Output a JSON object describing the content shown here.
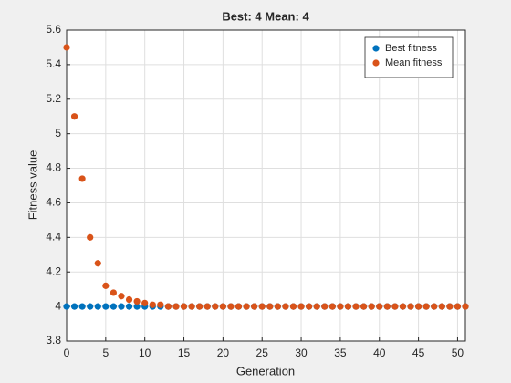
{
  "chart_data": {
    "type": "scatter",
    "title": "Best: 4 Mean: 4",
    "x_label": "Generation",
    "y_label": "Fitness value",
    "x": [
      0,
      1,
      2,
      3,
      4,
      5,
      6,
      7,
      8,
      9,
      10,
      11,
      12,
      13,
      14,
      15,
      16,
      17,
      18,
      19,
      20,
      21,
      22,
      23,
      24,
      25,
      26,
      27,
      28,
      29,
      30,
      31,
      32,
      33,
      34,
      35,
      36,
      37,
      38,
      39,
      40,
      41,
      42,
      43,
      44,
      45,
      46,
      47,
      48,
      49,
      50,
      51
    ],
    "series": [
      {
        "name": "Best fitness",
        "color": "#0072bd",
        "values": [
          4,
          4,
          4,
          4,
          4,
          4,
          4,
          4,
          4,
          4,
          4,
          4,
          4,
          4,
          4,
          4,
          4,
          4,
          4,
          4,
          4,
          4,
          4,
          4,
          4,
          4,
          4,
          4,
          4,
          4,
          4,
          4,
          4,
          4,
          4,
          4,
          4,
          4,
          4,
          4,
          4,
          4,
          4,
          4,
          4,
          4,
          4,
          4,
          4,
          4,
          4,
          4
        ]
      },
      {
        "name": "Mean fitness",
        "color": "#d95319",
        "values": [
          5.5,
          5.1,
          4.74,
          4.4,
          4.25,
          4.12,
          4.08,
          4.06,
          4.04,
          4.03,
          4.02,
          4.01,
          4.01,
          4,
          4,
          4,
          4,
          4,
          4,
          4,
          4,
          4,
          4,
          4,
          4,
          4,
          4,
          4,
          4,
          4,
          4,
          4,
          4,
          4,
          4,
          4,
          4,
          4,
          4,
          4,
          4,
          4,
          4,
          4,
          4,
          4,
          4,
          4,
          4,
          4,
          4,
          4
        ]
      }
    ],
    "xlim": [
      0,
      51
    ],
    "xticks": [
      0,
      5,
      10,
      15,
      20,
      25,
      30,
      35,
      40,
      45,
      50
    ],
    "ylim": [
      3.8,
      5.6
    ],
    "yticks": [
      3.8,
      4,
      4.2,
      4.4,
      4.6,
      4.8,
      5,
      5.2,
      5.4,
      5.6
    ],
    "grid": true,
    "legend": "northeast"
  }
}
